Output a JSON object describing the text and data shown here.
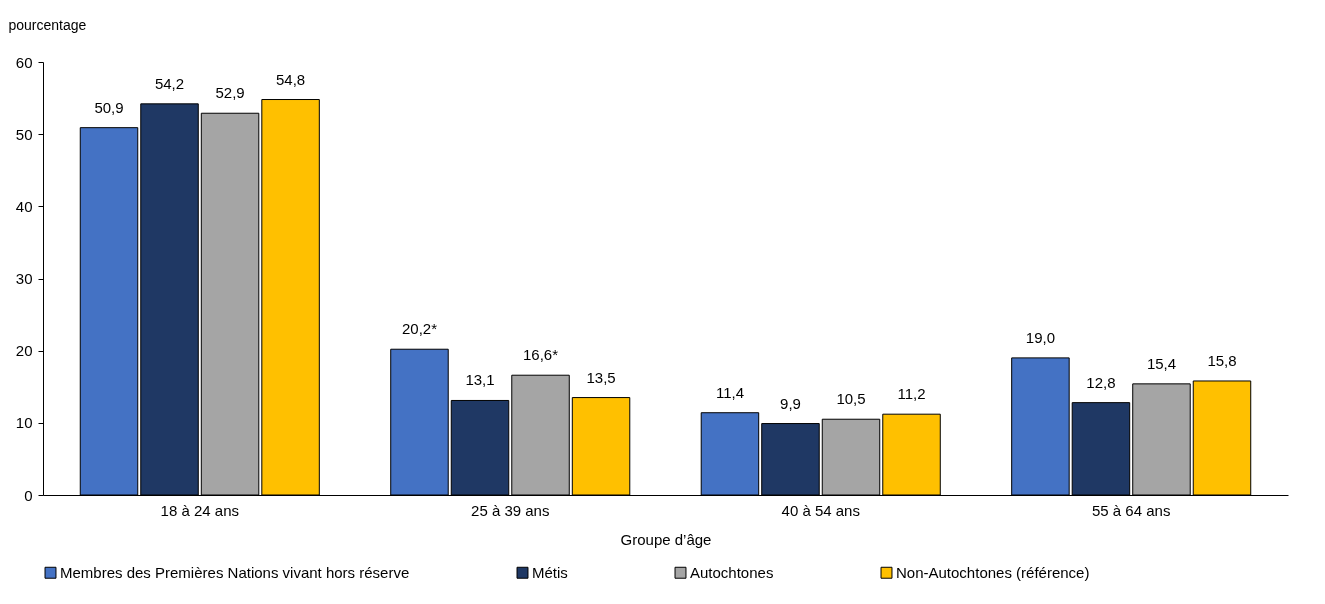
{
  "chart_data": {
    "type": "bar",
    "xlabel": "Groupe d’âge",
    "ylabel": "pourcentage",
    "categories": [
      "18 à 24 ans",
      "25 à 39 ans",
      "40 à 54 ans",
      "55 à 64 ans"
    ],
    "series": [
      {
        "name": "Membres des Premières Nations vivant hors réserve",
        "color": "#4472c4",
        "values": [
          50.9,
          20.2,
          11.4,
          19.0
        ],
        "value_labels": [
          "50,9",
          "20,2*",
          "11,4",
          "19,0"
        ]
      },
      {
        "name": "Métis",
        "color": "#1f3864",
        "values": [
          54.2,
          13.1,
          9.9,
          12.8
        ],
        "value_labels": [
          "54,2",
          "13,1",
          "9,9",
          "12,8"
        ]
      },
      {
        "name": "Autochtones",
        "color": "#a5a5a5",
        "values": [
          52.9,
          16.6,
          10.5,
          15.4
        ],
        "value_labels": [
          "52,9",
          "16,6*",
          "10,5",
          "15,4"
        ]
      },
      {
        "name": "Non-Autochtones (référence)",
        "color": "#ffc000",
        "values": [
          54.8,
          13.5,
          11.2,
          15.8
        ],
        "value_labels": [
          "54,8",
          "13,5",
          "11,2",
          "15,8"
        ]
      }
    ],
    "ylim": [
      0,
      60
    ],
    "yticks": [
      0,
      10,
      20,
      30,
      40,
      50,
      60
    ],
    "legend": "bottom"
  }
}
